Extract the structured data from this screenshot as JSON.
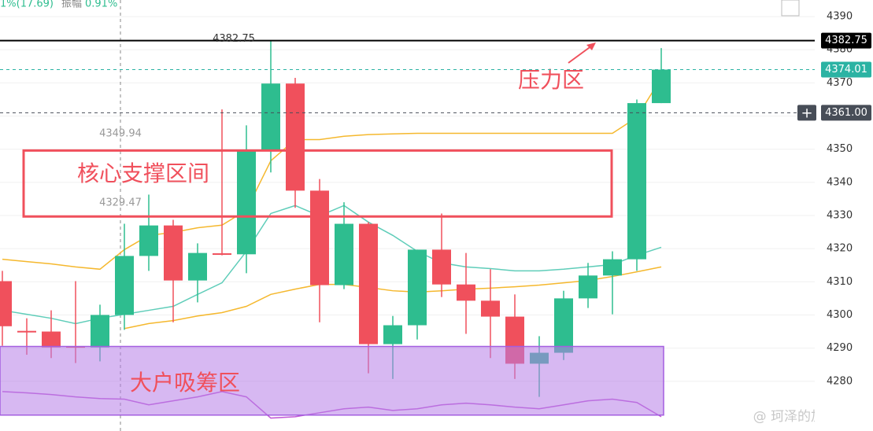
{
  "header": {
    "change": "1%(17.69)",
    "amplitude_label": "振幅",
    "amplitude": "0.91%"
  },
  "chart_data": {
    "type": "candlestick",
    "categories": [
      null,
      null,
      null,
      null,
      null,
      null,
      null,
      null,
      null,
      null,
      null,
      null,
      null,
      null,
      null,
      null,
      null,
      null,
      null,
      null,
      null,
      null,
      null,
      null,
      null,
      null,
      null,
      null
    ],
    "open": [
      4310.2,
      4295.2,
      4295,
      4290.6,
      4290.2,
      4300,
      4317.8,
      4327,
      4310.4,
      4318.6,
      4318.3,
      4349.4,
      4369.8,
      4337.5,
      4309,
      4327.5,
      4291.2,
      4296.9,
      4319.7,
      4309.2,
      4304.3,
      4299.5,
      4285.3,
      4288.6,
      4305,
      4311.9,
      4316.8,
      4363.9
    ],
    "high": [
      4313.3,
      4299,
      4301.4,
      4310.2,
      4303.1,
      4327.5,
      4336.3,
      4328.7,
      4321.6,
      4362,
      4357.2,
      4382.75,
      4371.5,
      4341,
      4334,
      4328,
      4299.7,
      4319.7,
      4330.6,
      4318.7,
      4313.8,
      4306.2,
      4293.6,
      4307.3,
      4315.7,
      4319.2,
      4365,
      4380.5
    ],
    "low": [
      4290.7,
      4288,
      4287,
      4285.5,
      4286,
      4295.5,
      4313.3,
      4297.8,
      4303.8,
      4318,
      4312.6,
      4343,
      4332.3,
      4297.8,
      4307.8,
      4282.4,
      4280.7,
      4292.6,
      4305.4,
      4294.3,
      4287,
      4280.7,
      4275.3,
      4286.4,
      4302.1,
      4300.2,
      4313.3,
      4363.9
    ],
    "close": [
      4296.6,
      4294.8,
      4290.2,
      4290.4,
      4300,
      4317.8,
      4327,
      4310.4,
      4318.7,
      4318.4,
      4349.4,
      4369.8,
      4337.5,
      4309,
      4327.5,
      4291.2,
      4296.9,
      4319.7,
      4309.2,
      4304.3,
      4299.5,
      4285.3,
      4288.6,
      4305,
      4311.9,
      4316.8,
      4363.9,
      4374.01
    ],
    "up_color": "#2ebd8f",
    "down_color": "#f0505c",
    "ylim": [
      4265,
      4395
    ],
    "yticks": [
      4280,
      4290,
      4300,
      4310,
      4320,
      4330,
      4340,
      4350,
      4360,
      4370,
      4380,
      4390
    ],
    "grid": true,
    "indicators": [
      {
        "color": "#f5b82e",
        "values": [
          4316.8,
          4316.1,
          4315.4,
          4314.5,
          4313.8,
          4319.7,
          4324,
          4324.9,
          4326.3,
          4327.1,
          4331.6,
          4346.5,
          4352.9,
          4352.9,
          4353.9,
          4354.4,
          4354.6,
          4354.8,
          4354.8,
          4354.8,
          4354.8,
          4354.8,
          4354.8,
          4354.8,
          4354.8,
          4354.8,
          4359.6,
          4371.5
        ]
      },
      {
        "color": "#f5b82e",
        "values": [
          null,
          null,
          null,
          null,
          null,
          4295.9,
          4297.4,
          4298.3,
          4299.7,
          4300.7,
          4302.6,
          4306.2,
          4307.8,
          4309.2,
          4309.2,
          4308.3,
          4307.3,
          4306.9,
          4307.3,
          4307.8,
          4308.1,
          4308.5,
          4309,
          4309.7,
          4310.4,
          4311.6,
          4313,
          4314.5
        ]
      },
      {
        "color": "#5fcdb9",
        "values": [
          4301.4,
          4300.2,
          4299,
          4297.4,
          4299,
          4300.2,
          4301.4,
          4302.6,
          4306.2,
          4309.7,
          4319.2,
          4330.6,
          4333,
          4329.9,
          4333,
          4328,
          4324,
          4319.2,
          4315.7,
          4314.5,
          4314,
          4313.3,
          4313.3,
          4313.8,
          4314.5,
          4315.2,
          4318,
          4320.4
        ]
      },
      {
        "color": "#c25bd6",
        "values": [
          4276.9,
          4276.5,
          4276,
          4275.3,
          4274.8,
          4274.6,
          4272.9,
          4274.1,
          4275.3,
          4276.9,
          4275.3,
          4268.9,
          4269.3,
          4270.5,
          4271.7,
          4272.2,
          4271.2,
          4271.7,
          4272.9,
          4273.4,
          4272.9,
          4272.2,
          4271.7,
          4272.9,
          4274.1,
          4274.6,
          4273.6,
          4269.3
        ]
      }
    ],
    "price_lines": [
      4382.75,
      4374.01,
      {
        "value": 4361,
        "label": "4361.00"
      }
    ],
    "price_line_colors": [
      "#000000",
      "#2bb3a3",
      "#474d57"
    ],
    "annotations": [
      4382.75,
      4349.94,
      4329.47
    ],
    "zones": [
      {
        "label": "核心支撑区间",
        "range": [
          4329.7,
          4349.6
        ],
        "color": "#f0505c"
      },
      {
        "label": "大户吸筹区",
        "range": [
          4269.8,
          4290.5
        ],
        "color": "#b77de8"
      }
    ],
    "pressure_label": "压力区",
    "watermark": "@ 珂泽的加密日记"
  }
}
